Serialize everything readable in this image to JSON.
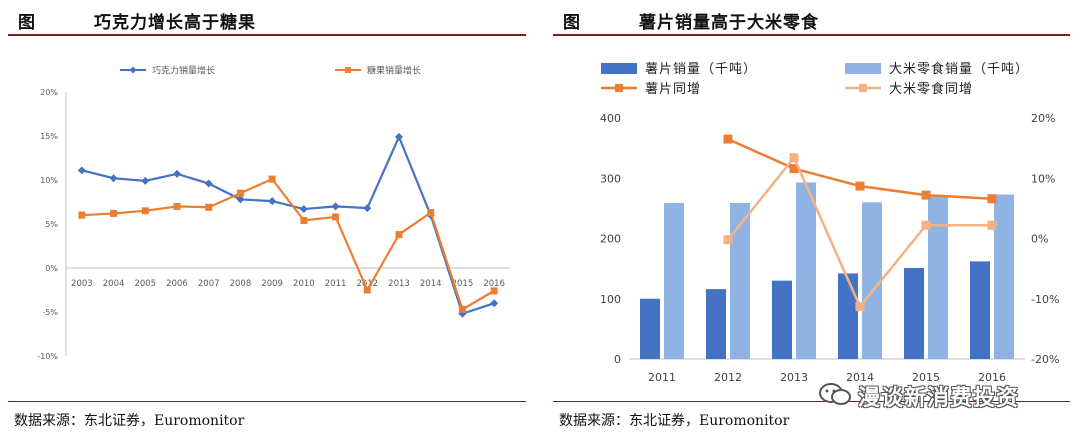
{
  "left": {
    "fig_label": "图",
    "title": "巧克力增长高于糖果",
    "source": "数据来源：东北证券，Euromonitor",
    "chart_data": {
      "type": "line",
      "x": [
        "2003",
        "2004",
        "2005",
        "2006",
        "2007",
        "2008",
        "2009",
        "2010",
        "2011",
        "2012",
        "2013",
        "2014",
        "2015",
        "2016"
      ],
      "ylim": [
        -10,
        20
      ],
      "yticks": [
        "20%",
        "15%",
        "10%",
        "5%",
        "0%",
        "-5%",
        "-10%"
      ],
      "ytick_values": [
        20,
        15,
        10,
        5,
        0,
        -5,
        -10
      ],
      "grid": false,
      "legend_position": "top",
      "series": [
        {
          "name": "巧克力销量增长",
          "color": "#4472c4",
          "values": [
            11.1,
            10.2,
            9.9,
            10.7,
            9.6,
            7.8,
            7.6,
            6.7,
            7.0,
            6.8,
            14.9,
            6.0,
            -5.2,
            -4.0
          ]
        },
        {
          "name": "糖果销量增长",
          "color": "#ed7d31",
          "values": [
            6.0,
            6.2,
            6.5,
            7.0,
            6.9,
            8.5,
            10.1,
            5.4,
            5.8,
            -2.5,
            3.8,
            6.3,
            -4.7,
            -2.6
          ]
        }
      ]
    }
  },
  "right": {
    "fig_label": "图",
    "title": "薯片销量高于大米零食",
    "source": "数据来源：东北证券，Euromonitor",
    "chart_data": {
      "type": "bar",
      "categories": [
        "2011",
        "2012",
        "2013",
        "2014",
        "2015",
        "2016"
      ],
      "ylim": [
        0,
        400
      ],
      "yticks": [
        "400",
        "300",
        "200",
        "100",
        "0"
      ],
      "ytick_values": [
        400,
        300,
        200,
        100,
        0
      ],
      "y2lim": [
        -20,
        20
      ],
      "y2ticks": [
        "20%",
        "10%",
        "0%",
        "-10%",
        "-20%"
      ],
      "y2tick_values": [
        20,
        10,
        0,
        -10,
        -20
      ],
      "grid": false,
      "legend_position": "top",
      "series": [
        {
          "name": "薯片销量（千吨）",
          "type": "bar",
          "axis": "left",
          "color": "#4472c4",
          "values": [
            100,
            116,
            130,
            142,
            151,
            162
          ]
        },
        {
          "name": "大米零食销量（千吨）",
          "type": "bar",
          "axis": "left",
          "color": "#8fb4e3",
          "values": [
            259,
            259,
            293,
            260,
            270,
            273
          ]
        },
        {
          "name": "薯片同增",
          "type": "line",
          "axis": "right",
          "color": "#ed7d31",
          "values": [
            null,
            16.5,
            11.6,
            8.7,
            7.2,
            6.6
          ]
        },
        {
          "name": "大米零食同增",
          "type": "line",
          "axis": "right",
          "color": "#f4b183",
          "values": [
            null,
            -0.2,
            13.4,
            -11.3,
            2.2,
            2.2
          ]
        }
      ]
    }
  },
  "watermark": {
    "text": "漫谈新消费投资",
    "icon": "wechat-icon"
  }
}
